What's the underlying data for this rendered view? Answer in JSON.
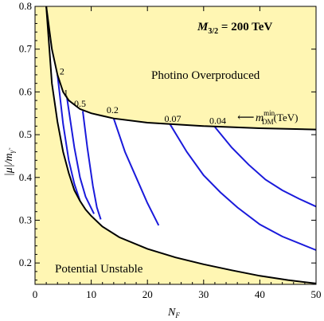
{
  "chart_data": {
    "type": "line",
    "title_mass": "200 TeV",
    "xlabel": "N",
    "xlabel_sub": "F",
    "ylabel": "|μ|/m",
    "ylabel_sub": "γ̃",
    "xlim": [
      0,
      50
    ],
    "ylim": [
      0.15,
      0.8
    ],
    "xticks": [
      "0",
      "10",
      "20",
      "30",
      "40",
      "50"
    ],
    "yticks": [
      "0.2",
      "0.3",
      "0.4",
      "0.5",
      "0.6",
      "0.7",
      "0.8"
    ],
    "grid": false,
    "region_labels": {
      "upper": "Photino Overproduced",
      "lower": "Potential Unstable"
    },
    "legend_arrow_text": "⟵",
    "legend_label": {
      "m": "m",
      "sup": "min",
      "sub": "DM",
      "unit": "(TeV)"
    },
    "fill_color": "#fff6b3",
    "curve_color": "#1a1adb",
    "boundary_color": "#000000",
    "upper_boundary": [
      [
        2,
        0.8
      ],
      [
        3,
        0.7
      ],
      [
        4,
        0.64
      ],
      [
        5,
        0.6
      ],
      [
        6,
        0.58
      ],
      [
        8,
        0.56
      ],
      [
        10,
        0.55
      ],
      [
        14,
        0.538
      ],
      [
        20,
        0.528
      ],
      [
        30,
        0.52
      ],
      [
        40,
        0.515
      ],
      [
        50,
        0.512
      ]
    ],
    "lower_boundary": [
      [
        2,
        0.8
      ],
      [
        3,
        0.62
      ],
      [
        4,
        0.53
      ],
      [
        5,
        0.46
      ],
      [
        6,
        0.41
      ],
      [
        7,
        0.37
      ],
      [
        8,
        0.345
      ],
      [
        9,
        0.325
      ],
      [
        10,
        0.31
      ],
      [
        12,
        0.285
      ],
      [
        15,
        0.26
      ],
      [
        20,
        0.233
      ],
      [
        25,
        0.213
      ],
      [
        30,
        0.197
      ],
      [
        35,
        0.183
      ],
      [
        40,
        0.17
      ],
      [
        45,
        0.16
      ],
      [
        50,
        0.152
      ]
    ],
    "series": [
      {
        "name": "2",
        "label_at": [
          4.8,
          0.635
        ],
        "points": [
          [
            4,
            0.64
          ],
          [
            5,
            0.525
          ],
          [
            6,
            0.44
          ],
          [
            7,
            0.385
          ],
          [
            8,
            0.345
          ]
        ]
      },
      {
        "name": "1",
        "label_at": [
          5.5,
          0.585
        ],
        "points": [
          [
            5.7,
            0.585
          ],
          [
            7,
            0.47
          ],
          [
            8,
            0.4
          ],
          [
            9,
            0.355
          ],
          [
            10.5,
            0.315
          ]
        ]
      },
      {
        "name": "0.5",
        "label_at": [
          8,
          0.56
        ],
        "points": [
          [
            8.5,
            0.555
          ],
          [
            9.3,
            0.47
          ],
          [
            10.3,
            0.38
          ],
          [
            11,
            0.33
          ],
          [
            11.7,
            0.302
          ]
        ]
      },
      {
        "name": "0.2",
        "label_at": [
          13.8,
          0.545
        ],
        "points": [
          [
            14,
            0.538
          ],
          [
            16,
            0.46
          ],
          [
            18,
            0.4
          ],
          [
            20,
            0.34
          ],
          [
            22,
            0.288
          ]
        ]
      },
      {
        "name": "0.07",
        "label_at": [
          24.5,
          0.524
        ],
        "points": [
          [
            24,
            0.525
          ],
          [
            27,
            0.46
          ],
          [
            30,
            0.405
          ],
          [
            33,
            0.365
          ],
          [
            36,
            0.33
          ],
          [
            40,
            0.29
          ],
          [
            44,
            0.262
          ],
          [
            50,
            0.23
          ]
        ]
      },
      {
        "name": "0.04",
        "label_at": [
          32.5,
          0.52
        ],
        "points": [
          [
            32,
            0.518
          ],
          [
            35,
            0.47
          ],
          [
            38,
            0.43
          ],
          [
            41,
            0.395
          ],
          [
            44,
            0.37
          ],
          [
            47,
            0.35
          ],
          [
            50,
            0.332
          ]
        ]
      }
    ]
  }
}
